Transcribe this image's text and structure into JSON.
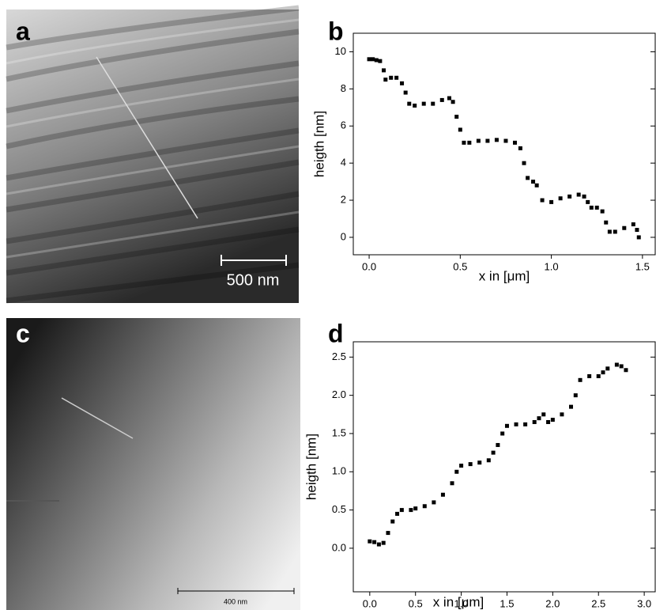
{
  "images": [
    {
      "label": "a",
      "scale_bar": "500 nm"
    },
    {
      "label": "c",
      "scale_bar": "400 nm"
    }
  ],
  "chart_data": [
    {
      "type": "scatter",
      "label": "b",
      "x_label": "x in [μm]",
      "y_label": "heigth [nm]",
      "color": "#000000",
      "x": [
        0.0,
        0.02,
        0.04,
        0.06,
        0.08,
        0.09,
        0.12,
        0.15,
        0.18,
        0.2,
        0.22,
        0.25,
        0.3,
        0.35,
        0.4,
        0.44,
        0.46,
        0.48,
        0.5,
        0.52,
        0.55,
        0.6,
        0.65,
        0.7,
        0.75,
        0.8,
        0.83,
        0.85,
        0.87,
        0.9,
        0.92,
        0.95,
        1.0,
        1.05,
        1.1,
        1.15,
        1.18,
        1.2,
        1.22,
        1.25,
        1.28,
        1.3,
        1.32,
        1.35,
        1.4,
        1.45,
        1.47,
        1.48
      ],
      "values": [
        9.6,
        9.6,
        9.55,
        9.5,
        9.0,
        8.5,
        8.6,
        8.6,
        8.3,
        7.8,
        7.2,
        7.1,
        7.2,
        7.2,
        7.4,
        7.5,
        7.3,
        6.5,
        5.8,
        5.1,
        5.1,
        5.2,
        5.2,
        5.25,
        5.2,
        5.1,
        4.8,
        4.0,
        3.2,
        3.0,
        2.8,
        2.0,
        1.9,
        2.1,
        2.2,
        2.3,
        2.2,
        1.9,
        1.6,
        1.6,
        1.4,
        0.8,
        0.3,
        0.3,
        0.5,
        0.7,
        0.4,
        0.0
      ],
      "xlim": [
        -0.087,
        1.57
      ],
      "ylim": [
        -0.94,
        11.0
      ],
      "xticks": [
        {
          "value": 0,
          "label": "0.0"
        },
        {
          "value": 0.5,
          "label": "0.5"
        },
        {
          "value": 1,
          "label": "1.0"
        },
        {
          "value": 1.5,
          "label": "1.5"
        }
      ],
      "yticks": [
        0,
        2,
        4,
        6,
        8,
        10
      ]
    },
    {
      "type": "scatter",
      "label": "d",
      "x_label": "x in [μm]",
      "y_label": "heigth [nm]",
      "color": "#000000",
      "x": [
        0.0,
        0.05,
        0.1,
        0.15,
        0.2,
        0.25,
        0.3,
        0.35,
        0.45,
        0.5,
        0.6,
        0.7,
        0.8,
        0.9,
        0.95,
        1.0,
        1.1,
        1.2,
        1.3,
        1.35,
        1.4,
        1.45,
        1.5,
        1.6,
        1.7,
        1.8,
        1.85,
        1.9,
        1.95,
        2.0,
        2.1,
        2.2,
        2.25,
        2.3,
        2.4,
        2.5,
        2.55,
        2.6,
        2.7,
        2.75,
        2.8
      ],
      "values": [
        0.09,
        0.08,
        0.05,
        0.07,
        0.2,
        0.35,
        0.45,
        0.5,
        0.5,
        0.52,
        0.55,
        0.6,
        0.7,
        0.85,
        1.0,
        1.08,
        1.1,
        1.12,
        1.15,
        1.25,
        1.35,
        1.5,
        1.6,
        1.62,
        1.62,
        1.65,
        1.7,
        1.75,
        1.65,
        1.68,
        1.75,
        1.85,
        2.0,
        2.2,
        2.25,
        2.25,
        2.3,
        2.35,
        2.4,
        2.38,
        2.33
      ],
      "xlim": [
        -0.18,
        3.12
      ],
      "ylim": [
        -0.57,
        2.7
      ],
      "xticks": [
        {
          "value": 0,
          "label": "0.0"
        },
        {
          "value": 0.5,
          "label": "0.5"
        },
        {
          "value": 1,
          "label": "1.0"
        },
        {
          "value": 1.5,
          "label": "1.5"
        },
        {
          "value": 2,
          "label": "2.0"
        },
        {
          "value": 2.5,
          "label": "2.5"
        },
        {
          "value": 3,
          "label": "3.0"
        }
      ],
      "yticks": [
        {
          "value": 0,
          "label": "0.0"
        },
        {
          "value": 0.5,
          "label": "0.5"
        },
        {
          "value": 1,
          "label": "1.0"
        },
        {
          "value": 1.5,
          "label": "1.5"
        },
        {
          "value": 2,
          "label": "2.0"
        },
        {
          "value": 2.5,
          "label": "2.5"
        }
      ]
    }
  ]
}
